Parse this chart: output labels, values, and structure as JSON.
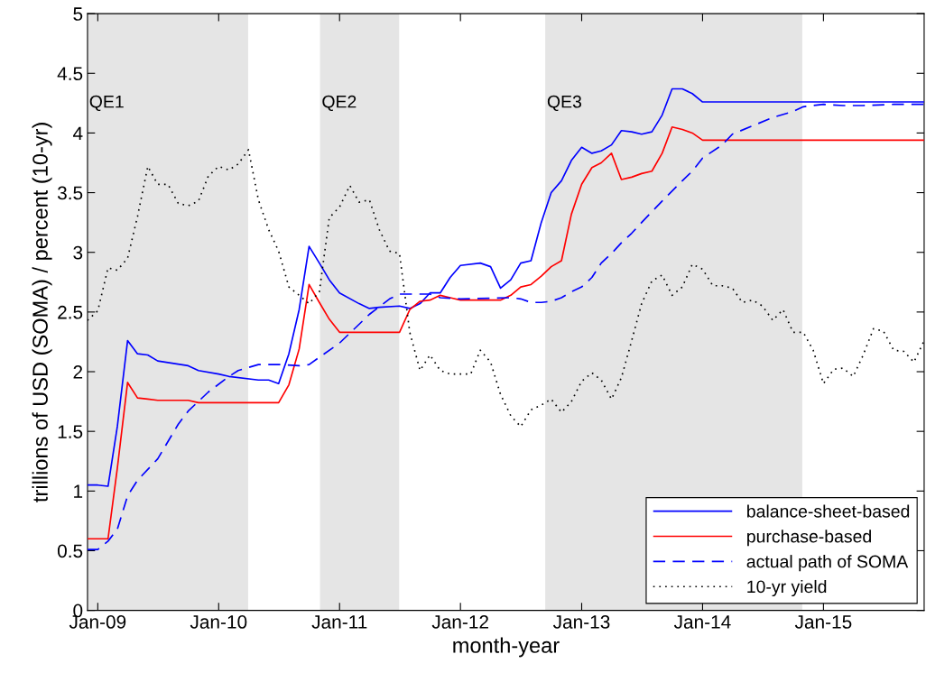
{
  "chart_data": {
    "type": "line",
    "xlabel": "month-year",
    "ylabel": "trillions of USD (SOMA) / percent (10-yr)",
    "xlim": [
      "2008-12",
      "2015-11"
    ],
    "xticks": [
      {
        "value": "2009-01",
        "label": "Jan-09"
      },
      {
        "value": "2010-01",
        "label": "Jan-10"
      },
      {
        "value": "2011-01",
        "label": "Jan-11"
      },
      {
        "value": "2012-01",
        "label": "Jan-12"
      },
      {
        "value": "2013-01",
        "label": "Jan-13"
      },
      {
        "value": "2014-01",
        "label": "Jan-14"
      },
      {
        "value": "2015-01",
        "label": "Jan-15"
      }
    ],
    "ylim": [
      0,
      5
    ],
    "yticks": [
      0,
      0.5,
      1,
      1.5,
      2,
      2.5,
      3,
      3.5,
      4,
      4.5,
      5
    ],
    "grid": false,
    "legend": "bottom right",
    "bands": [
      {
        "axis": "x",
        "from": "2008-11-25",
        "to": "2010-03-31",
        "label": "QE1",
        "color": "#e5e5e5"
      },
      {
        "axis": "x",
        "from": "2010-11-03",
        "to": "2011-06-30",
        "label": "QE2",
        "color": "#e5e5e5"
      },
      {
        "axis": "x",
        "from": "2012-09-13",
        "to": "2014-10-29",
        "label": "QE3",
        "color": "#e5e5e5"
      }
    ],
    "series": [
      {
        "name": "balance-sheet-based",
        "color": "#0000ff",
        "line_style": "solid",
        "x": [
          "2008-12",
          "2009-01",
          "2009-02",
          "2009-03",
          "2009-04",
          "2009-05",
          "2009-06",
          "2009-07",
          "2009-10",
          "2009-11",
          "2010-01",
          "2010-02",
          "2010-05",
          "2010-06",
          "2010-07",
          "2010-08",
          "2010-09",
          "2010-10",
          "2010-11",
          "2010-12",
          "2011-01",
          "2011-03",
          "2011-04",
          "2011-05",
          "2011-07",
          "2011-08",
          "2011-09",
          "2011-10",
          "2011-11",
          "2011-12",
          "2012-01",
          "2012-03",
          "2012-04",
          "2012-05",
          "2012-06",
          "2012-07",
          "2012-08",
          "2012-09",
          "2012-10",
          "2012-11",
          "2012-12",
          "2013-01",
          "2013-02",
          "2013-03",
          "2013-04",
          "2013-05",
          "2013-06",
          "2013-07",
          "2013-08",
          "2013-09",
          "2013-10",
          "2013-11",
          "2013-12",
          "2014-01",
          "2015-11"
        ],
        "values": [
          1.05,
          1.05,
          1.04,
          1.54,
          2.26,
          2.15,
          2.14,
          2.09,
          2.05,
          2.01,
          1.98,
          1.96,
          1.93,
          1.93,
          1.9,
          2.15,
          2.52,
          3.05,
          2.91,
          2.77,
          2.66,
          2.57,
          2.53,
          2.54,
          2.55,
          2.53,
          2.57,
          2.66,
          2.66,
          2.79,
          2.89,
          2.91,
          2.88,
          2.7,
          2.77,
          2.91,
          2.93,
          3.25,
          3.5,
          3.6,
          3.77,
          3.88,
          3.83,
          3.85,
          3.9,
          4.02,
          4.01,
          3.99,
          4.01,
          4.15,
          4.37,
          4.37,
          4.33,
          4.26,
          4.26
        ]
      },
      {
        "name": "purchase-based",
        "color": "#ff0000",
        "line_style": "solid",
        "x": [
          "2008-12",
          "2009-02",
          "2009-03",
          "2009-04",
          "2009-05",
          "2009-06",
          "2009-07",
          "2009-10",
          "2009-11",
          "2010-07",
          "2010-08",
          "2010-09",
          "2010-10",
          "2010-11",
          "2010-12",
          "2011-01",
          "2011-07",
          "2011-08",
          "2011-09",
          "2011-10",
          "2011-11",
          "2011-12",
          "2012-01",
          "2012-05",
          "2012-06",
          "2012-07",
          "2012-08",
          "2012-09",
          "2012-10",
          "2012-11",
          "2012-12",
          "2013-01",
          "2013-02",
          "2013-03",
          "2013-04",
          "2013-05",
          "2013-06",
          "2013-07",
          "2013-08",
          "2013-09",
          "2013-10",
          "2013-11",
          "2013-12",
          "2014-01",
          "2015-11"
        ],
        "values": [
          0.6,
          0.6,
          1.19,
          1.91,
          1.78,
          1.77,
          1.76,
          1.76,
          1.74,
          1.74,
          1.89,
          2.19,
          2.73,
          2.58,
          2.44,
          2.33,
          2.33,
          2.52,
          2.59,
          2.6,
          2.64,
          2.62,
          2.6,
          2.6,
          2.64,
          2.71,
          2.73,
          2.8,
          2.88,
          2.93,
          3.32,
          3.57,
          3.71,
          3.75,
          3.83,
          3.61,
          3.63,
          3.66,
          3.68,
          3.83,
          4.05,
          4.03,
          4.0,
          3.94,
          3.94
        ]
      },
      {
        "name": "actual path of SOMA",
        "color": "#0000ff",
        "line_style": "dashed",
        "x": [
          "2008-12",
          "2009-01",
          "2009-02",
          "2009-03",
          "2009-04",
          "2009-05",
          "2009-07",
          "2009-09",
          "2009-10",
          "2009-12",
          "2010-02",
          "2010-03",
          "2010-05",
          "2010-07",
          "2010-09",
          "2010-10",
          "2011-01",
          "2011-04",
          "2011-06",
          "2011-07",
          "2011-10",
          "2011-11",
          "2012-01",
          "2012-06",
          "2012-07",
          "2012-08",
          "2012-09",
          "2012-10",
          "2012-11",
          "2012-12",
          "2013-01",
          "2013-02",
          "2013-03",
          "2013-04",
          "2013-05",
          "2013-06",
          "2013-07",
          "2013-08",
          "2013-09",
          "2013-11",
          "2013-12",
          "2014-01",
          "2014-03",
          "2014-04",
          "2014-06",
          "2014-08",
          "2014-10",
          "2014-11",
          "2015-01",
          "2015-03",
          "2015-05",
          "2015-08",
          "2015-11"
        ],
        "values": [
          0.51,
          0.51,
          0.58,
          0.68,
          0.96,
          1.09,
          1.27,
          1.56,
          1.67,
          1.83,
          1.96,
          2.01,
          2.06,
          2.06,
          2.05,
          2.06,
          2.24,
          2.48,
          2.61,
          2.65,
          2.65,
          2.62,
          2.61,
          2.62,
          2.61,
          2.58,
          2.58,
          2.59,
          2.62,
          2.67,
          2.71,
          2.79,
          2.91,
          2.99,
          3.08,
          3.16,
          3.25,
          3.34,
          3.43,
          3.6,
          3.68,
          3.79,
          3.9,
          3.99,
          4.06,
          4.13,
          4.18,
          4.22,
          4.24,
          4.23,
          4.23,
          4.24,
          4.24
        ]
      },
      {
        "name": "10-yr yield",
        "color": "#000000",
        "line_style": "dotted",
        "x": [
          "2008-12",
          "2009-01",
          "2009-02",
          "2009-03",
          "2009-04",
          "2009-05",
          "2009-06",
          "2009-07",
          "2009-08",
          "2009-09",
          "2009-10",
          "2009-11",
          "2009-12",
          "2010-01",
          "2010-02",
          "2010-03",
          "2010-04",
          "2010-05",
          "2010-06",
          "2010-07",
          "2010-08",
          "2010-09",
          "2010-10",
          "2010-11",
          "2010-12",
          "2011-01",
          "2011-02",
          "2011-03",
          "2011-04",
          "2011-05",
          "2011-06",
          "2011-07",
          "2011-08",
          "2011-09",
          "2011-10",
          "2011-11",
          "2011-12",
          "2012-02",
          "2012-03",
          "2012-04",
          "2012-05",
          "2012-06",
          "2012-07",
          "2012-08",
          "2012-09",
          "2012-10",
          "2012-11",
          "2012-12",
          "2013-01",
          "2013-02",
          "2013-03",
          "2013-04",
          "2013-05",
          "2013-06",
          "2013-07",
          "2013-08",
          "2013-09",
          "2013-10",
          "2013-11",
          "2013-12",
          "2014-01",
          "2014-02",
          "2014-03",
          "2014-04",
          "2014-05",
          "2014-06",
          "2014-07",
          "2014-08",
          "2014-09",
          "2014-10",
          "2014-11",
          "2014-12",
          "2015-01",
          "2015-02",
          "2015-03",
          "2015-04",
          "2015-05",
          "2015-06",
          "2015-07",
          "2015-08",
          "2015-09",
          "2015-10",
          "2015-11"
        ],
        "values": [
          2.43,
          2.51,
          2.87,
          2.85,
          2.95,
          3.3,
          3.72,
          3.57,
          3.57,
          3.41,
          3.39,
          3.43,
          3.64,
          3.72,
          3.69,
          3.74,
          3.86,
          3.44,
          3.19,
          3.01,
          2.71,
          2.64,
          2.57,
          2.67,
          3.29,
          3.38,
          3.56,
          3.42,
          3.44,
          3.19,
          3.01,
          2.99,
          2.33,
          2.01,
          2.14,
          2.01,
          1.98,
          1.98,
          2.18,
          2.08,
          1.81,
          1.63,
          1.54,
          1.68,
          1.72,
          1.77,
          1.66,
          1.75,
          1.92,
          1.99,
          1.93,
          1.77,
          1.95,
          2.26,
          2.57,
          2.76,
          2.81,
          2.64,
          2.71,
          2.9,
          2.86,
          2.72,
          2.72,
          2.7,
          2.58,
          2.6,
          2.55,
          2.43,
          2.52,
          2.33,
          2.33,
          2.18,
          1.9,
          2.02,
          2.03,
          1.96,
          2.14,
          2.36,
          2.34,
          2.18,
          2.17,
          2.08,
          2.26
        ]
      }
    ]
  }
}
